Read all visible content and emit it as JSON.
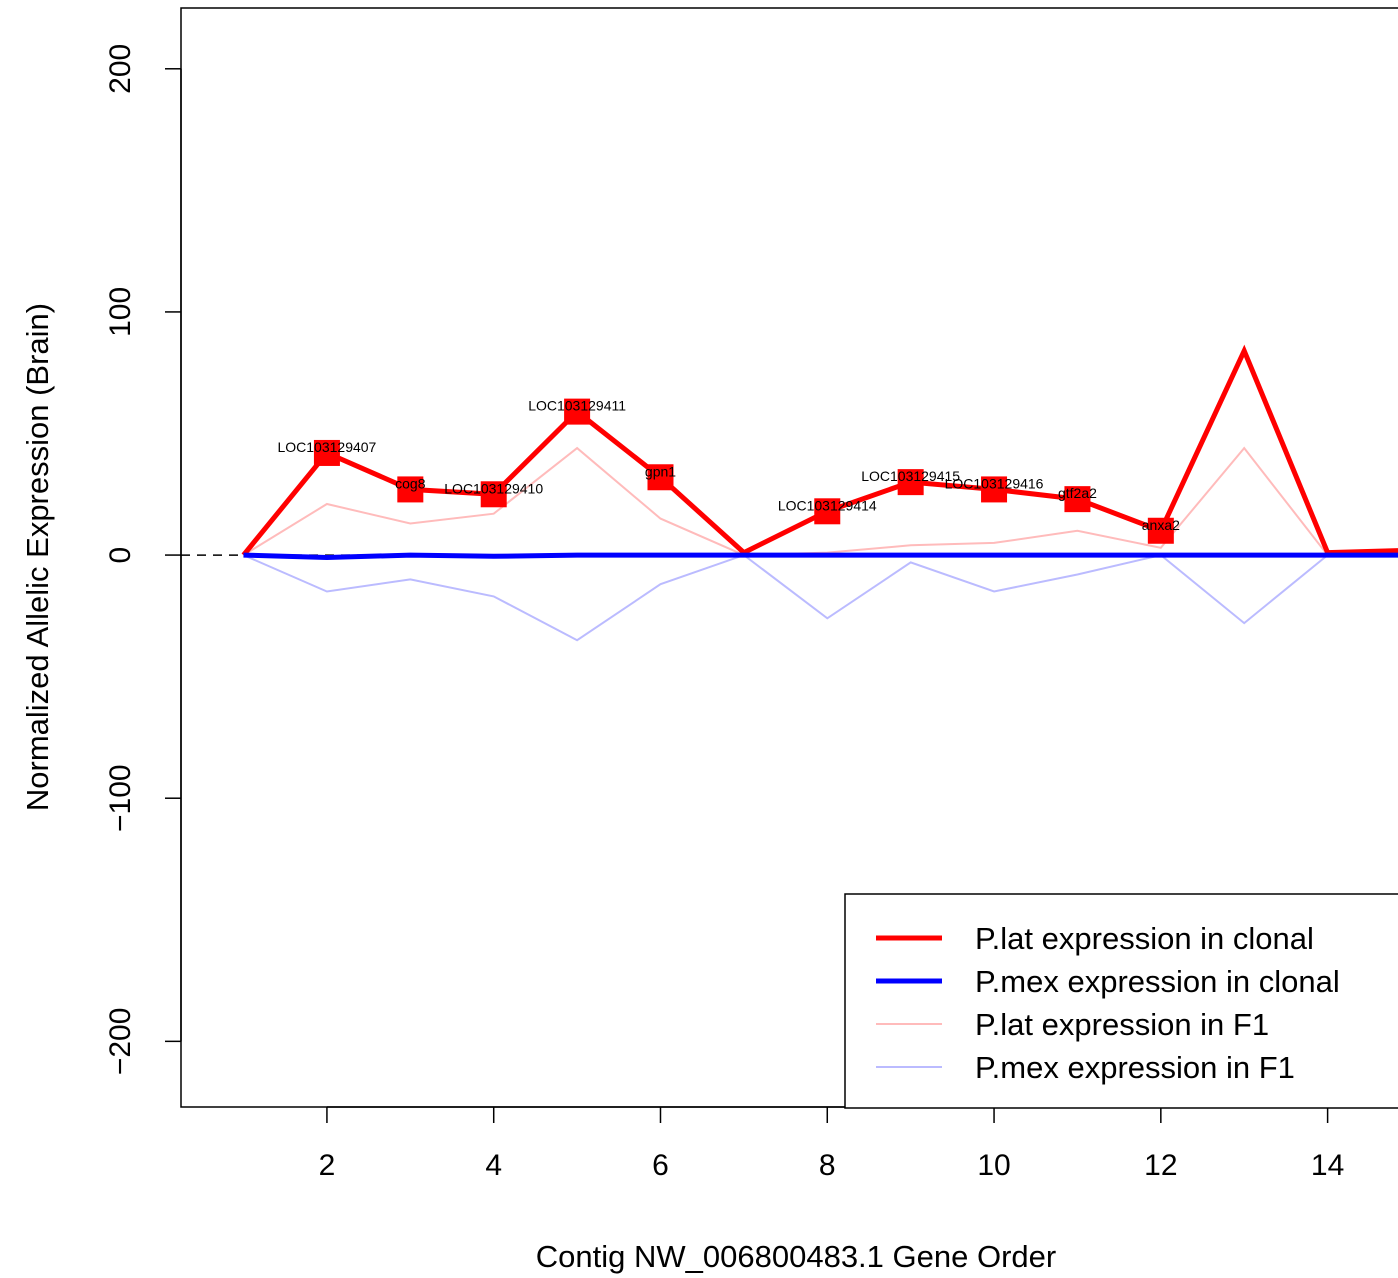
{
  "chart_data": {
    "type": "line",
    "title": "",
    "xlabel": "Contig NW_006800483.1 Gene Order",
    "ylabel": "Normalized Allelic Expression (Brain)",
    "xlim": [
      0.25,
      15.0
    ],
    "ylim": [
      -227,
      225
    ],
    "x_ticks": [
      2,
      4,
      6,
      8,
      10,
      12,
      14
    ],
    "y_ticks": [
      -200,
      -100,
      0,
      100,
      200
    ],
    "x_tick_labels": [
      "2",
      "4",
      "6",
      "8",
      "10",
      "12",
      "14"
    ],
    "y_tick_labels": [
      "−200",
      "−100",
      "0",
      "100",
      "200"
    ],
    "reference_line": {
      "y": 0,
      "style": "dashed"
    },
    "x": [
      1,
      2,
      3,
      4,
      5,
      6,
      7,
      8,
      9,
      10,
      11,
      12,
      13,
      14,
      15
    ],
    "series": [
      {
        "name": "P.lat expression in clonal",
        "color": "#ff0000",
        "style": "thick",
        "values": [
          0,
          42,
          27,
          25,
          59,
          32,
          1,
          18,
          30,
          27,
          23,
          10,
          84,
          1,
          2
        ]
      },
      {
        "name": "P.mex expression in clonal",
        "color": "#0000ff",
        "style": "thick",
        "values": [
          0,
          -1,
          0,
          -0.5,
          0,
          0,
          0,
          0,
          0,
          0,
          0,
          0,
          0,
          0,
          0
        ]
      },
      {
        "name": "P.lat expression in F1",
        "color": "#ffbbbb",
        "style": "thin",
        "values": [
          0,
          21,
          13,
          17,
          44,
          15,
          0,
          1,
          4,
          5,
          10,
          3,
          44,
          0,
          0
        ]
      },
      {
        "name": "P.mex expression in F1",
        "color": "#bbbbff",
        "style": "thin",
        "values": [
          0,
          -15,
          -10,
          -17,
          -35,
          -12,
          0,
          -26,
          -3,
          -15,
          -8,
          0,
          -28,
          0,
          0
        ]
      }
    ],
    "marked_points": [
      {
        "x": 2,
        "y": 42,
        "label": "LOC103129407"
      },
      {
        "x": 3,
        "y": 27,
        "label": "cog8"
      },
      {
        "x": 4,
        "y": 25,
        "label": "LOC103129410"
      },
      {
        "x": 5,
        "y": 59,
        "label": "LOC103129411"
      },
      {
        "x": 6,
        "y": 32,
        "label": "gpn1"
      },
      {
        "x": 8,
        "y": 18,
        "label": "LOC103129414"
      },
      {
        "x": 9,
        "y": 30,
        "label": "LOC103129415"
      },
      {
        "x": 10,
        "y": 27,
        "label": "LOC103129416"
      },
      {
        "x": 11,
        "y": 23,
        "label": "gtf2a2"
      },
      {
        "x": 12,
        "y": 10,
        "label": "anxa2"
      }
    ],
    "marker_color": "#ff0000",
    "legend_position": "bottom-right",
    "grid": false
  }
}
